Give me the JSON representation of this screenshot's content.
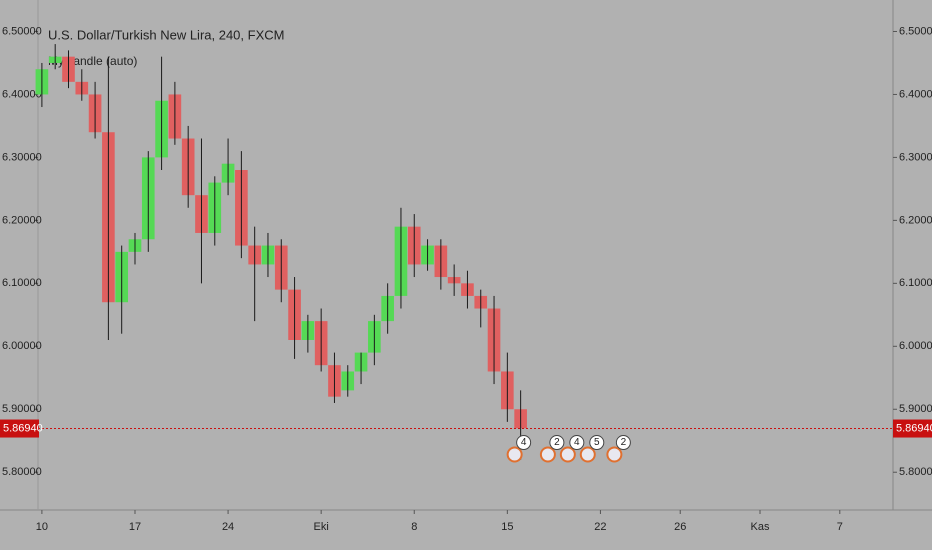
{
  "chart_data": {
    "type": "candlestick",
    "title": "U.S. Dollar/Turkish New Lira, 240, FXCM",
    "indicator": "My candle (auto)",
    "up_color": "#55d955",
    "down_color": "#e06060",
    "wick_color": "#1a1a1a",
    "background": "#b1b1b1",
    "x": [
      0,
      1,
      2,
      3,
      4,
      5,
      6,
      7,
      8,
      9,
      10,
      11,
      12,
      13,
      14,
      15,
      16,
      17,
      18,
      19,
      20,
      21,
      22,
      23,
      24,
      25,
      26,
      27,
      28,
      29,
      30,
      31,
      32,
      33,
      34,
      35,
      36
    ],
    "open": [
      6.4,
      6.45,
      6.46,
      6.42,
      6.4,
      6.34,
      6.07,
      6.15,
      6.17,
      6.3,
      6.4,
      6.33,
      6.24,
      6.18,
      6.26,
      6.28,
      6.16,
      6.13,
      6.16,
      6.09,
      6.01,
      6.04,
      5.97,
      5.93,
      5.96,
      5.99,
      6.04,
      6.08,
      6.19,
      6.13,
      6.16,
      6.11,
      6.1,
      6.08,
      6.06,
      5.96,
      5.9
    ],
    "high": [
      6.45,
      6.48,
      6.47,
      6.44,
      6.42,
      6.46,
      6.16,
      6.18,
      6.31,
      6.46,
      6.42,
      6.35,
      6.33,
      6.27,
      6.33,
      6.31,
      6.19,
      6.18,
      6.17,
      6.11,
      6.05,
      6.06,
      5.99,
      5.97,
      5.99,
      6.05,
      6.1,
      6.22,
      6.21,
      6.17,
      6.17,
      6.13,
      6.12,
      6.09,
      6.08,
      5.99,
      5.93
    ],
    "low": [
      6.38,
      6.44,
      6.41,
      6.39,
      6.33,
      6.01,
      6.02,
      6.13,
      6.15,
      6.28,
      6.32,
      6.22,
      6.1,
      6.16,
      6.24,
      6.14,
      6.04,
      6.11,
      6.07,
      5.98,
      5.99,
      5.96,
      5.91,
      5.92,
      5.94,
      5.97,
      6.02,
      6.06,
      6.11,
      6.12,
      6.09,
      6.08,
      6.06,
      6.03,
      5.94,
      5.88,
      5.82
    ],
    "close": [
      6.44,
      6.46,
      6.42,
      6.4,
      6.34,
      6.07,
      6.15,
      6.17,
      6.3,
      6.39,
      6.33,
      6.24,
      6.18,
      6.26,
      6.29,
      6.16,
      6.13,
      6.16,
      6.09,
      6.01,
      6.04,
      5.97,
      5.92,
      5.96,
      5.99,
      6.04,
      6.08,
      6.19,
      6.13,
      6.16,
      6.11,
      6.1,
      6.08,
      6.06,
      5.96,
      5.9,
      5.87
    ],
    "xlim": [
      -3,
      64
    ],
    "xticks": [
      {
        "value": 0,
        "label": "10"
      },
      {
        "value": 7,
        "label": "17"
      },
      {
        "value": 14,
        "label": "24"
      },
      {
        "value": 21,
        "label": "Eki"
      },
      {
        "value": 28,
        "label": "8"
      },
      {
        "value": 35,
        "label": "15"
      },
      {
        "value": 42,
        "label": "22"
      },
      {
        "value": 48,
        "label": "26"
      },
      {
        "value": 54,
        "label": "Kas"
      },
      {
        "value": 60,
        "label": "7"
      }
    ],
    "ylim": [
      5.74,
      6.55
    ],
    "yticks": [
      {
        "value": 5.8,
        "label": "5.80000"
      },
      {
        "value": 5.9,
        "label": "5.90000"
      },
      {
        "value": 6.0,
        "label": "6.00000"
      },
      {
        "value": 6.1,
        "label": "6.10000"
      },
      {
        "value": 6.2,
        "label": "6.20000"
      },
      {
        "value": 6.3,
        "label": "6.30000"
      },
      {
        "value": 6.4,
        "label": "6.40000"
      },
      {
        "value": 6.5,
        "label": "6.50000"
      }
    ],
    "last_price": {
      "value": 5.8694,
      "label": "5.86940"
    },
    "last_price_color": "#c81010",
    "events": [
      {
        "x": 36,
        "count": 4
      },
      {
        "x": 38.5,
        "count": 2
      },
      {
        "x": 40,
        "count": 4
      },
      {
        "x": 41.5,
        "count": 5
      },
      {
        "x": 43.5,
        "count": 2
      }
    ]
  }
}
